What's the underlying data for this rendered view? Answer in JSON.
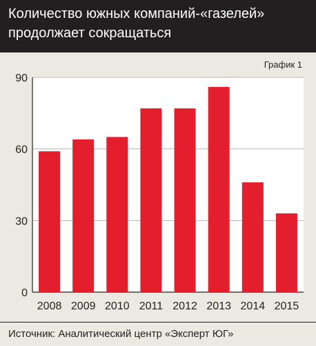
{
  "header": {
    "title_line1": "Количество южных компаний-«газелей»",
    "title_line2": "продолжает сокращаться"
  },
  "chart_label": "График 1",
  "source": "Источник: Аналитический центр «Эксперт ЮГ»",
  "colors": {
    "header_bg": "#231f20",
    "panel_bg": "#ece9e2",
    "bar": "#e31e2d",
    "plot_bg": "#ffffff"
  },
  "chart_data": {
    "type": "bar",
    "categories": [
      "2008",
      "2009",
      "2010",
      "2011",
      "2012",
      "2013",
      "2014",
      "2015"
    ],
    "values": [
      59,
      64,
      65,
      77,
      77,
      86,
      46,
      33
    ],
    "ylim": [
      0,
      90
    ],
    "yticks": [
      0,
      30,
      60,
      90
    ],
    "title": "Количество южных компаний-«газелей» продолжает сокращаться",
    "xlabel": "",
    "ylabel": "",
    "grid": true
  }
}
